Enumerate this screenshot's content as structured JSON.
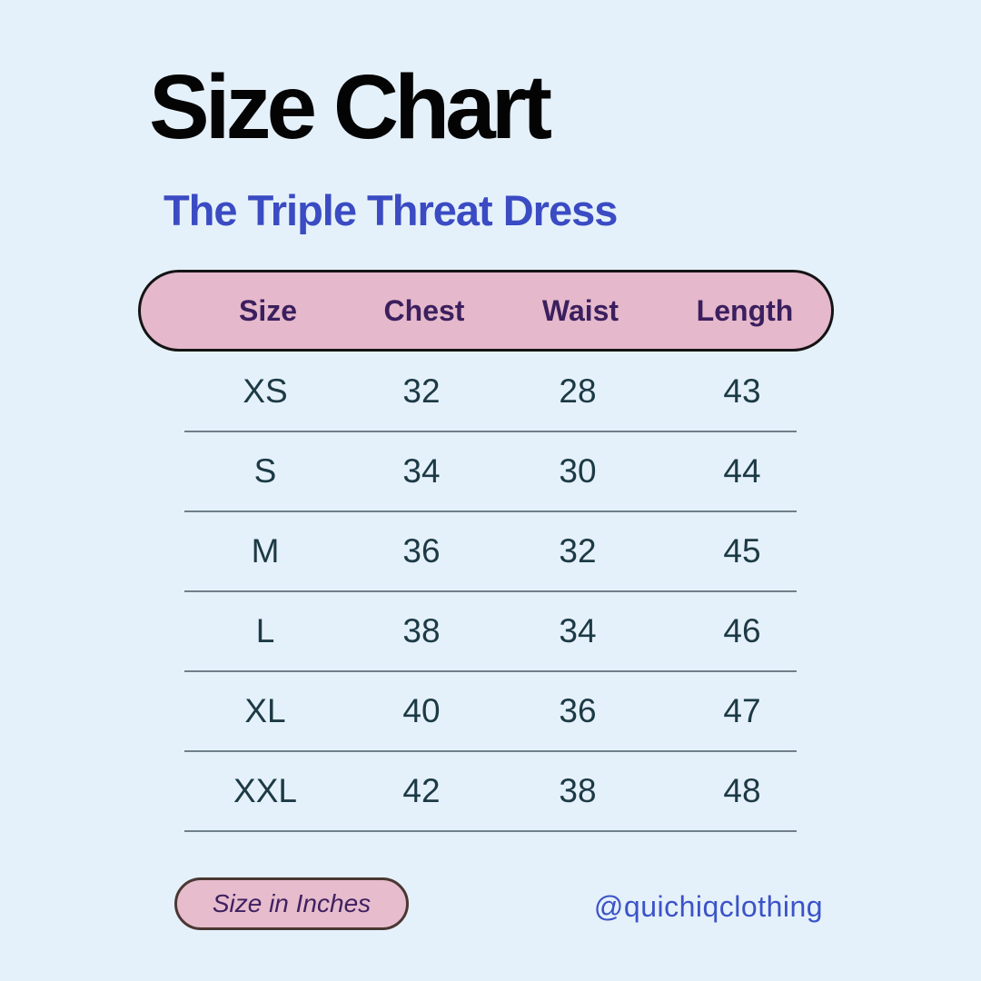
{
  "page": {
    "title": "Size Chart",
    "subtitle": "The Triple Threat Dress"
  },
  "chart_data": {
    "type": "table",
    "title": "Size Chart",
    "subtitle": "The Triple Threat Dress",
    "columns": [
      "Size",
      "Chest",
      "Waist",
      "Length"
    ],
    "rows": [
      {
        "size": "XS",
        "chest": "32",
        "waist": "28",
        "length": "43"
      },
      {
        "size": "S",
        "chest": "34",
        "waist": "30",
        "length": "44"
      },
      {
        "size": "M",
        "chest": "36",
        "waist": "32",
        "length": "45"
      },
      {
        "size": "L",
        "chest": "38",
        "waist": "34",
        "length": "46"
      },
      {
        "size": "XL",
        "chest": "40",
        "waist": "36",
        "length": "47"
      },
      {
        "size": "XXL",
        "chest": "42",
        "waist": "38",
        "length": "48"
      }
    ],
    "unit_note": "Size in Inches"
  },
  "footer": {
    "note": "Size in Inches",
    "handle": "@quichiqclothing"
  },
  "colors": {
    "background": "#e5f1fa",
    "title_black": "#040404",
    "accent_blue": "#3a4bc3",
    "handle_blue": "#3c53c8",
    "pill_pink": "#e5b8cb",
    "pill_border_dark": "#141414",
    "note_pill_border": "#4a3733",
    "header_text_purple": "#3b1f5e",
    "cell_text_teal": "#1c3a45",
    "divider_gray": "#6f7f8b"
  }
}
